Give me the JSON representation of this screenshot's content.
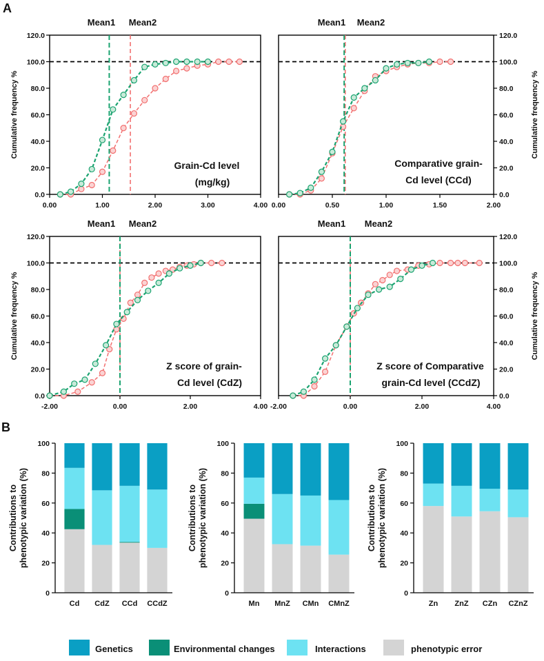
{
  "panel_labels": {
    "a": "A",
    "b": "B"
  },
  "colors": {
    "series1": "#1aa370",
    "series1_fill": "#c9ead9",
    "series2": "#f26f6f",
    "series2_fill": "#fbd3d3",
    "threshold": "#000000",
    "genetics": "#0a9fc4",
    "environmental": "#0a8f77",
    "interactions": "#6de2f2",
    "error": "#d4d4d4"
  },
  "chart_data": [
    {
      "id": "a1",
      "type": "line",
      "annotation_lines": [
        "Grain-Cd level",
        "(mg/kg)"
      ],
      "ylabel": "Cumulative  frequency %",
      "y_side": "left",
      "xlim": [
        0,
        4
      ],
      "ylim": [
        0,
        120
      ],
      "x_ticks": [
        "0.00",
        "1.00",
        "2.00",
        "3.00",
        "4.00"
      ],
      "y_ticks": [
        "0.0",
        "20.0",
        "40.0",
        "60.0",
        "80.0",
        "100.0",
        "120.0"
      ],
      "threshold": 100,
      "means": [
        {
          "label": "Mean1",
          "value": 1.13
        },
        {
          "label": "Mean2",
          "value": 1.53
        }
      ],
      "series": [
        {
          "name": "Mean1",
          "x": [
            0.2,
            0.4,
            0.6,
            0.8,
            1.0,
            1.2,
            1.4,
            1.6,
            1.8,
            2.0,
            2.2,
            2.4,
            2.6,
            2.8,
            3.0
          ],
          "y": [
            0,
            2,
            8,
            19,
            41,
            64,
            75,
            86,
            96,
            98,
            99,
            100,
            100,
            100,
            100
          ]
        },
        {
          "name": "Mean2",
          "x": [
            0.2,
            0.4,
            0.6,
            0.8,
            1.0,
            1.2,
            1.4,
            1.6,
            1.8,
            2.0,
            2.2,
            2.4,
            2.6,
            2.8,
            3.0,
            3.2,
            3.4,
            3.6
          ],
          "y": [
            0,
            0,
            4,
            7,
            17,
            33,
            50,
            61,
            71,
            80,
            87,
            93,
            95,
            97,
            98,
            100,
            100,
            100
          ]
        }
      ]
    },
    {
      "id": "a2",
      "type": "line",
      "annotation_lines": [
        "Comparative grain-",
        "Cd level (CCd)"
      ],
      "ylabel": "Cumulative  frequency %",
      "y_side": "right",
      "xlim": [
        0,
        2
      ],
      "ylim": [
        0,
        120
      ],
      "x_ticks": [
        "0.00",
        "0.50",
        "1.00",
        "1.50",
        "2.00"
      ],
      "y_ticks": [
        "0.0",
        "20.0",
        "40.0",
        "60.0",
        "80.0",
        "100.0",
        "120.0"
      ],
      "threshold": 100,
      "means": [
        {
          "label": "Mean1",
          "value": 0.61
        },
        {
          "label": "Mean2",
          "value": 0.62
        }
      ],
      "series": [
        {
          "name": "Mean1",
          "x": [
            0.1,
            0.2,
            0.3,
            0.4,
            0.5,
            0.6,
            0.7,
            0.8,
            0.9,
            1.0,
            1.1,
            1.2,
            1.3,
            1.4
          ],
          "y": [
            0,
            1,
            5,
            17,
            32,
            55,
            73,
            80,
            86,
            95,
            98,
            99,
            99,
            100
          ]
        },
        {
          "name": "Mean2",
          "x": [
            0.1,
            0.2,
            0.3,
            0.4,
            0.5,
            0.6,
            0.7,
            0.8,
            0.9,
            1.0,
            1.1,
            1.2,
            1.3,
            1.4,
            1.5,
            1.6
          ],
          "y": [
            0,
            0,
            3,
            12,
            31,
            51,
            65,
            78,
            89,
            93,
            96,
            98,
            99,
            99,
            100,
            100
          ]
        }
      ]
    },
    {
      "id": "a3",
      "type": "line",
      "annotation_lines": [
        "Z score of grain-",
        "Cd level (CdZ)"
      ],
      "ylabel": "Cumulative  frequency %",
      "y_side": "left",
      "xlim": [
        -2,
        4
      ],
      "ylim": [
        0,
        120
      ],
      "x_ticks": [
        "-2.00",
        "0.00",
        "2.00",
        "4.00"
      ],
      "y_ticks": [
        "0.0",
        "20.0",
        "40.0",
        "60.0",
        "80.0",
        "100.0",
        "120.0"
      ],
      "threshold": 100,
      "means": [
        {
          "label": "Mean1",
          "value": 0
        },
        {
          "label": "Mean2",
          "value": 0
        }
      ],
      "series": [
        {
          "name": "Mean1",
          "x": [
            -2.0,
            -1.6,
            -1.3,
            -1.0,
            -0.7,
            -0.4,
            -0.1,
            0.2,
            0.5,
            0.8,
            1.1,
            1.4,
            1.7,
            2.0,
            2.3
          ],
          "y": [
            0,
            3,
            9,
            12,
            24,
            38,
            54,
            63,
            72,
            79,
            85,
            92,
            96,
            98,
            100
          ]
        },
        {
          "name": "Mean2",
          "x": [
            -2.0,
            -1.6,
            -1.2,
            -0.8,
            -0.5,
            -0.3,
            -0.1,
            0.1,
            0.3,
            0.5,
            0.7,
            0.9,
            1.1,
            1.3,
            1.5,
            1.7,
            1.9,
            2.1,
            2.3,
            2.6,
            2.9
          ],
          "y": [
            0,
            0,
            3,
            10,
            17,
            35,
            50,
            58,
            70,
            76,
            85,
            89,
            92,
            94,
            95,
            97,
            98,
            99,
            100,
            100,
            100
          ]
        }
      ]
    },
    {
      "id": "a4",
      "type": "line",
      "annotation_lines": [
        "Z score of Comparative",
        "grain-Cd level (CCdZ)"
      ],
      "ylabel": "Cumulative  frequency %",
      "y_side": "right",
      "xlim": [
        -2,
        4
      ],
      "ylim": [
        0,
        120
      ],
      "x_ticks": [
        "-2.00",
        "0.00",
        "2.00",
        "4.00"
      ],
      "y_ticks": [
        "0.0",
        "20.0",
        "40.0",
        "60.0",
        "80.0",
        "100.0",
        "120.0"
      ],
      "threshold": 100,
      "means": [
        {
          "label": "Mean1",
          "value": 0
        },
        {
          "label": "Mean2",
          "value": 0
        }
      ],
      "series": [
        {
          "name": "Mean1",
          "x": [
            -1.6,
            -1.3,
            -1.0,
            -0.7,
            -0.4,
            -0.1,
            0.2,
            0.5,
            0.8,
            1.1,
            1.4,
            1.7,
            2.0,
            2.3
          ],
          "y": [
            0,
            3,
            12,
            28,
            38,
            52,
            66,
            76,
            80,
            82,
            88,
            95,
            98,
            100
          ]
        },
        {
          "name": "Mean2",
          "x": [
            -1.6,
            -1.3,
            -1.0,
            -0.7,
            -0.4,
            -0.1,
            0.1,
            0.3,
            0.5,
            0.7,
            0.9,
            1.1,
            1.3,
            1.6,
            1.9,
            2.2,
            2.5,
            2.8,
            3.0,
            3.2,
            3.6
          ],
          "y": [
            0,
            0,
            7,
            18,
            38,
            52,
            62,
            70,
            77,
            84,
            87,
            91,
            94,
            95,
            98,
            99,
            100,
            100,
            100,
            100,
            100
          ]
        }
      ]
    },
    {
      "id": "b1",
      "type": "bar",
      "ylabel_lines": [
        "Contributions to",
        "phenotypic variation (%)"
      ],
      "ylim": [
        0,
        100
      ],
      "y_ticks": [
        "0",
        "20",
        "40",
        "60",
        "80",
        "100"
      ],
      "categories": [
        "Cd",
        "CdZ",
        "CCd",
        "CCdZ"
      ],
      "series": [
        {
          "name": "phenotypic error",
          "values": [
            42.5,
            32,
            33.5,
            30
          ]
        },
        {
          "name": "Environmental changes",
          "values": [
            13.5,
            0,
            0.5,
            0
          ]
        },
        {
          "name": "Interactions",
          "values": [
            27.5,
            36.5,
            37.5,
            39
          ]
        },
        {
          "name": "Genetics",
          "values": [
            16.5,
            31.5,
            28.5,
            31
          ]
        }
      ]
    },
    {
      "id": "b2",
      "type": "bar",
      "ylabel_lines": [
        "Contributions to",
        "phenotypic variation (%)"
      ],
      "ylim": [
        0,
        100
      ],
      "y_ticks": [
        "0",
        "20",
        "40",
        "60",
        "80",
        "100"
      ],
      "categories": [
        "Mn",
        "MnZ",
        "CMn",
        "CMnZ"
      ],
      "series": [
        {
          "name": "phenotypic error",
          "values": [
            49.5,
            32.5,
            31.5,
            25.5
          ]
        },
        {
          "name": "Environmental changes",
          "values": [
            10,
            0,
            0,
            0
          ]
        },
        {
          "name": "Interactions",
          "values": [
            17.5,
            33.5,
            33.5,
            36.5
          ]
        },
        {
          "name": "Genetics",
          "values": [
            23,
            34,
            35,
            38
          ]
        }
      ]
    },
    {
      "id": "b3",
      "type": "bar",
      "ylabel_lines": [
        "Contributions to",
        "phenotypic variation (%)"
      ],
      "ylim": [
        0,
        100
      ],
      "y_ticks": [
        "0",
        "20",
        "40",
        "60",
        "80",
        "100"
      ],
      "categories": [
        "Zn",
        "ZnZ",
        "CZn",
        "CZnZ"
      ],
      "series": [
        {
          "name": "phenotypic error",
          "values": [
            58,
            51,
            54.5,
            50.5
          ]
        },
        {
          "name": "Environmental changes",
          "values": [
            0,
            0,
            0,
            0
          ]
        },
        {
          "name": "Interactions",
          "values": [
            15,
            20.5,
            15,
            18.5
          ]
        },
        {
          "name": "Genetics",
          "values": [
            27,
            28.5,
            30.5,
            31
          ]
        }
      ]
    }
  ],
  "legend": [
    {
      "label": "Genetics",
      "color_key": "genetics"
    },
    {
      "label": "Environmental changes",
      "color_key": "environmental"
    },
    {
      "label": "Interactions",
      "color_key": "interactions"
    },
    {
      "label": "phenotypic error",
      "color_key": "error"
    }
  ]
}
